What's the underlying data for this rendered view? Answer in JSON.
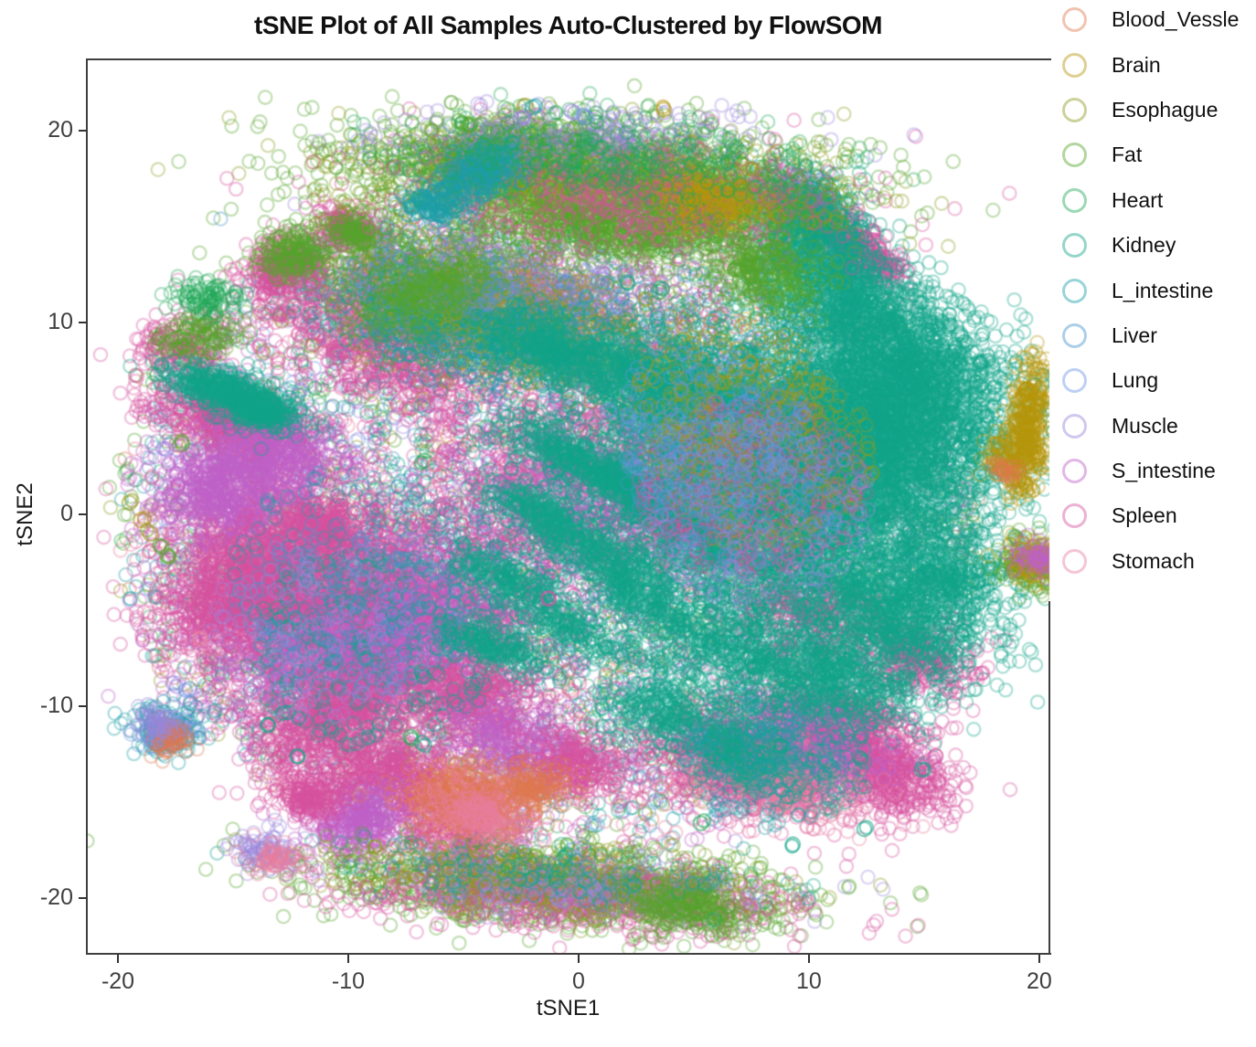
{
  "chart_data": {
    "type": "scatter",
    "title": "tSNE Plot of All Samples Auto-Clustered by FlowSOM",
    "xlabel": "tSNE1",
    "ylabel": "tSNE2",
    "xlim": [
      -21.35,
      20.44
    ],
    "ylim": [
      -22.9,
      23.71
    ],
    "x_ticks": [
      -20,
      -10,
      0,
      10,
      20
    ],
    "y_ticks": [
      -20,
      -10,
      0,
      10,
      20
    ],
    "grid": false,
    "legend_position": "right",
    "point_style": {
      "shape": "open-circle",
      "radius": 7.2,
      "stroke": 2.3,
      "alpha": 0.34
    },
    "series": [
      {
        "name": "Blood_Vessle",
        "color": "#E0794F"
      },
      {
        "name": "Brain",
        "color": "#B6950D"
      },
      {
        "name": "Esophague",
        "color": "#909C21"
      },
      {
        "name": "Fat",
        "color": "#55A52B"
      },
      {
        "name": "Heart",
        "color": "#21A857"
      },
      {
        "name": "Kidney",
        "color": "#13A489"
      },
      {
        "name": "L_intestine",
        "color": "#1C9FA8"
      },
      {
        "name": "Liver",
        "color": "#4895CB"
      },
      {
        "name": "Lung",
        "color": "#6D96E6"
      },
      {
        "name": "Muscle",
        "color": "#9B86DC"
      },
      {
        "name": "S_intestine",
        "color": "#BF60C8"
      },
      {
        "name": "Spleen",
        "color": "#D6529F"
      },
      {
        "name": "Stomach",
        "color": "#E87E9D"
      }
    ],
    "clusters": [
      [
        "Blood_Vessle",
        -1.5,
        -0.5,
        19,
        0,
        0,
        150,
        "d"
      ],
      [
        "Brain",
        -1,
        4,
        16,
        0,
        0,
        90,
        "d"
      ],
      [
        "Esophague",
        -1.5,
        0,
        19,
        0,
        0,
        520,
        "d"
      ],
      [
        "Fat",
        -1.5,
        1,
        19,
        0,
        0,
        600,
        "d"
      ],
      [
        "Heart",
        -1.5,
        0.5,
        18.5,
        0,
        0,
        480,
        "d"
      ],
      [
        "L_intestine",
        -1.5,
        -0.5,
        18.5,
        0,
        0,
        600,
        "d"
      ],
      [
        "Liver",
        -1.5,
        0,
        18,
        0,
        0,
        450,
        "d"
      ],
      [
        "Lung",
        -1.5,
        0,
        18,
        0,
        0,
        400,
        "d"
      ],
      [
        "Muscle",
        -1.5,
        -0.5,
        18.5,
        0,
        0,
        470,
        "d"
      ],
      [
        "S_intestine",
        -1.5,
        -1,
        18.5,
        0,
        0,
        520,
        "d"
      ],
      [
        "Spleen",
        -1.5,
        -1,
        18.5,
        0,
        0,
        430,
        "d"
      ],
      [
        "Stomach",
        -1.5,
        -0.5,
        18.5,
        0,
        0,
        470,
        "d"
      ],
      [
        "Kidney",
        -1.5,
        0,
        18,
        0,
        0,
        350,
        "d"
      ],
      [
        "Spleen",
        -0.3,
        2,
        4,
        3,
        0,
        1000
      ],
      [
        "S_intestine",
        1,
        0.5,
        4,
        3,
        0,
        650
      ],
      [
        "Spleen",
        -4,
        11,
        4.2,
        1.5,
        -12,
        850
      ],
      [
        "Spleen",
        -8.7,
        8.8,
        2.6,
        1.4,
        -25,
        620
      ],
      [
        "Fat",
        -5.5,
        12.3,
        3.5,
        1.2,
        -15,
        520
      ],
      [
        "Esophague",
        -3,
        10,
        4,
        1.5,
        -10,
        430
      ],
      [
        "Heart",
        -7,
        10.5,
        2.5,
        1.2,
        -20,
        300
      ],
      [
        "L_intestine",
        -5,
        9,
        3,
        1.3,
        -15,
        330
      ],
      [
        "Muscle",
        -2,
        12,
        4,
        1.5,
        -10,
        240
      ],
      [
        "Brain",
        -1,
        9.5,
        3.5,
        1.5,
        -15,
        190
      ],
      [
        "Liver",
        -4,
        11.5,
        4,
        1.6,
        -12,
        240
      ],
      [
        "Spleen",
        -9,
        -5.8,
        3.4,
        2.4,
        12,
        2100
      ],
      [
        "S_intestine",
        -9.2,
        -6.2,
        3.4,
        2.4,
        12,
        1400
      ],
      [
        "Spleen",
        -12.6,
        -1.6,
        2.4,
        1.9,
        -15,
        1050
      ],
      [
        "S_intestine",
        -15.4,
        1.4,
        1.5,
        1.3,
        0,
        580
      ],
      [
        "Spleen",
        -14.6,
        -4.2,
        1.9,
        1.4,
        22,
        720
      ],
      [
        "Spleen",
        -15,
        4.9,
        1.8,
        0.8,
        -20,
        540
      ],
      [
        "S_intestine",
        -13.2,
        3.2,
        1.5,
        1,
        -10,
        380
      ],
      [
        "Spleen",
        -10.6,
        -10.6,
        1.9,
        1.2,
        32,
        620
      ],
      [
        "Spleen",
        -8,
        -13.6,
        1.5,
        1,
        -12,
        480
      ],
      [
        "S_intestine",
        -9.6,
        -16,
        1.2,
        0.8,
        22,
        340
      ],
      [
        "Spleen",
        -11.6,
        -14.6,
        0.8,
        0.6,
        0,
        210
      ],
      [
        "Spleen",
        -4.6,
        -9.6,
        1.5,
        1.1,
        0,
        380
      ],
      [
        "S_intestine",
        -2.6,
        -12,
        1.5,
        1,
        -18,
        340
      ],
      [
        "Spleen",
        -5,
        -16.4,
        1.3,
        1,
        0,
        290
      ],
      [
        "Spleen",
        0,
        -13,
        1.3,
        0.9,
        -15,
        250
      ],
      [
        "Spleen",
        -11,
        -0.6,
        0.7,
        0.6,
        0,
        160
      ],
      [
        "Spleen",
        -12.8,
        12.7,
        0.9,
        0.7,
        0,
        250
      ],
      [
        "Fat",
        -12.3,
        13.5,
        0.8,
        0.6,
        0,
        170
      ],
      [
        "Spleen",
        -10.2,
        15.1,
        0.6,
        0.5,
        0,
        120
      ],
      [
        "Fat",
        -9.8,
        14.8,
        0.6,
        0.5,
        0,
        100
      ],
      [
        "Spleen",
        -17.2,
        8.6,
        1.1,
        0.8,
        0,
        170
      ],
      [
        "Fat",
        -16.6,
        9.3,
        0.9,
        0.6,
        0,
        110
      ],
      [
        "Heart",
        -16.2,
        11.3,
        0.7,
        0.5,
        0,
        90
      ],
      [
        "Spleen",
        11,
        14.9,
        1.5,
        0.55,
        -35,
        250
      ],
      [
        "Spleen",
        12.6,
        13.3,
        1.1,
        0.5,
        -35,
        160
      ],
      [
        "S_intestine",
        9.8,
        16.6,
        1,
        0.5,
        -30,
        120
      ],
      [
        "Spleen",
        7.6,
        -13,
        2.6,
        1.3,
        -12,
        800
      ],
      [
        "Spleen",
        11.4,
        -11.2,
        1.9,
        1.1,
        -22,
        480
      ],
      [
        "Spleen",
        13.6,
        -13.9,
        1.5,
        0.9,
        -25,
        330
      ],
      [
        "S_intestine",
        9.5,
        -12,
        2.2,
        1.2,
        -15,
        380
      ],
      [
        "Spleen",
        10,
        -5,
        2,
        1.4,
        -25,
        380
      ],
      [
        "Spleen",
        14.8,
        -7.5,
        1.3,
        0.9,
        -25,
        250
      ],
      [
        "Stomach",
        8.5,
        -14,
        2,
        1,
        -12,
        280
      ],
      [
        "L_intestine",
        -9,
        -3,
        6,
        0,
        0,
        240,
        "d"
      ],
      [
        "Kidney",
        -9,
        -7,
        5.5,
        0,
        0,
        280,
        "d"
      ],
      [
        "Liver",
        -10,
        -5,
        5,
        0,
        0,
        150,
        "d"
      ],
      [
        "Muscle",
        -11,
        -6,
        5,
        0,
        0,
        140,
        "d"
      ],
      [
        "Kidney",
        8.3,
        1.8,
        4.3,
        4,
        0,
        4600
      ],
      [
        "Kidney",
        12.8,
        3.8,
        3,
        2.6,
        10,
        2300
      ],
      [
        "Kidney",
        14.6,
        7.2,
        1.8,
        1.6,
        20,
        680
      ],
      [
        "Kidney",
        12.2,
        10.3,
        2,
        1.4,
        -25,
        680
      ],
      [
        "Kidney",
        10.6,
        13,
        1.6,
        1.1,
        -28,
        480
      ],
      [
        "Kidney",
        9.7,
        15.7,
        1.3,
        1,
        -30,
        380
      ],
      [
        "Kidney",
        5,
        6.5,
        2.6,
        1.4,
        -22,
        680
      ],
      [
        "Kidney",
        1,
        7.8,
        2.2,
        1,
        -25,
        430
      ],
      [
        "Kidney",
        -1.8,
        8.8,
        1.4,
        0.8,
        -25,
        250
      ],
      [
        "Kidney",
        13.6,
        -5.3,
        2.4,
        1.5,
        -33,
        780
      ],
      [
        "Kidney",
        16.2,
        -3.2,
        1.4,
        1.1,
        -33,
        340
      ],
      [
        "Kidney",
        11.3,
        -8.6,
        1.8,
        1.1,
        -28,
        430
      ],
      [
        "Kidney",
        7.2,
        -7.5,
        2.2,
        1.3,
        -25,
        480
      ],
      [
        "Kidney",
        3.8,
        -10.4,
        1.6,
        0.9,
        -15,
        290
      ],
      [
        "Kidney",
        7,
        -12.4,
        1.3,
        0.8,
        -22,
        250
      ],
      [
        "Kidney",
        -15.2,
        6.4,
        1.5,
        0.5,
        -18,
        480
      ],
      [
        "Kidney",
        -13.9,
        5.3,
        0.8,
        0.4,
        -18,
        160
      ],
      [
        "Kidney",
        2.2,
        1.5,
        2,
        0.6,
        -30,
        270
      ],
      [
        "Kidney",
        -0.5,
        3,
        1.8,
        0.5,
        -28,
        250
      ],
      [
        "Kidney",
        -1.5,
        0,
        1.6,
        0.5,
        -32,
        230
      ],
      [
        "Kidney",
        0.8,
        -2,
        1.8,
        0.5,
        -30,
        230
      ],
      [
        "Kidney",
        -2.8,
        -3.5,
        1.6,
        0.5,
        -28,
        210
      ],
      [
        "Kidney",
        2.8,
        -4.5,
        1.8,
        0.5,
        -32,
        230
      ],
      [
        "Kidney",
        -0.5,
        -6,
        1.8,
        0.5,
        -28,
        210
      ],
      [
        "Kidney",
        -3.5,
        -7,
        1.4,
        0.5,
        -25,
        190
      ],
      [
        "Kidney",
        4.8,
        -0.5,
        1.6,
        0.5,
        -30,
        210
      ],
      [
        "Kidney",
        9.5,
        -12.5,
        3.5,
        0,
        0,
        170,
        "d"
      ],
      [
        "L_intestine",
        8,
        -13,
        3.5,
        0,
        0,
        120,
        "d"
      ],
      [
        "Spleen",
        7.5,
        1.5,
        5,
        0,
        0,
        400,
        "d"
      ],
      [
        "Esophague",
        8,
        3,
        5,
        0,
        0,
        250,
        "d"
      ],
      [
        "Brain",
        6.5,
        6.5,
        4,
        0,
        0,
        130,
        "d"
      ],
      [
        "Muscle",
        8,
        0,
        5,
        0,
        0,
        190,
        "d"
      ],
      [
        "Liver",
        7,
        2,
        5,
        0,
        0,
        190,
        "d"
      ],
      [
        "Lung",
        5.5,
        4.5,
        4.5,
        0,
        0,
        160,
        "d"
      ],
      [
        "Fat",
        0.5,
        17.6,
        5.3,
        1.35,
        -4,
        1500
      ],
      [
        "Esophague",
        0.5,
        17.4,
        5.3,
        1.4,
        -4,
        650
      ],
      [
        "Fat",
        -3.2,
        19,
        2.2,
        0.8,
        8,
        420
      ],
      [
        "Fat",
        5.2,
        15.9,
        2,
        1,
        -18,
        380
      ],
      [
        "Fat",
        0.8,
        14.9,
        2.6,
        0.8,
        -10,
        470
      ],
      [
        "Spleen",
        1.5,
        16.8,
        5,
        1.5,
        -5,
        470
      ],
      [
        "Muscle",
        0,
        19.6,
        4.5,
        0.8,
        0,
        230
      ],
      [
        "L_intestine",
        -4.3,
        17.8,
        1,
        0.7,
        25,
        260
      ],
      [
        "L_intestine",
        -6.3,
        16.1,
        0.7,
        0.5,
        0,
        130
      ],
      [
        "Brain",
        5.8,
        16.4,
        1.2,
        0.7,
        -15,
        170
      ],
      [
        "Heart",
        2,
        18.5,
        4.5,
        1.2,
        -5,
        330
      ],
      [
        "Fat",
        -6.5,
        11.5,
        1.8,
        0.8,
        30,
        240
      ],
      [
        "Fat",
        8,
        12.5,
        1.5,
        0.9,
        -20,
        240
      ],
      [
        "Fat",
        -0.8,
        -19.4,
        5.2,
        1,
        -4,
        1000
      ],
      [
        "Spleen",
        -0.4,
        -19.8,
        5,
        0.9,
        -4,
        650
      ],
      [
        "Esophague",
        -1.2,
        -19,
        5,
        0.9,
        -4,
        380
      ],
      [
        "Muscle",
        0.5,
        -19.5,
        4.5,
        0.9,
        -4,
        210
      ],
      [
        "Fat",
        4.6,
        -20.4,
        1.4,
        0.7,
        -15,
        230
      ],
      [
        "Kidney",
        -2,
        -18.6,
        4.5,
        0.8,
        -4,
        150
      ],
      [
        "Blood_Vessle",
        -5,
        -14.9,
        1.3,
        0.9,
        -10,
        400
      ],
      [
        "Stomach",
        -4.2,
        -15.4,
        1.2,
        0.8,
        -10,
        230
      ],
      [
        "Blood_Vessle",
        -2,
        -14.2,
        0.8,
        0.6,
        0,
        140
      ],
      [
        "Brain",
        19.55,
        4.8,
        0.42,
        1.5,
        -5,
        290
      ],
      [
        "Brain",
        18.95,
        2.9,
        0.7,
        0.55,
        0,
        110
      ],
      [
        "Brain",
        19.3,
        1.5,
        0.3,
        0.3,
        0,
        30
      ],
      [
        "Blood_Vessle",
        18.35,
        2.25,
        0.3,
        0.25,
        0,
        25
      ],
      [
        "Fat",
        19.85,
        -2.55,
        0.8,
        0.7,
        0,
        190
      ],
      [
        "Brain",
        19.85,
        -2.55,
        0.7,
        0.6,
        0,
        100
      ],
      [
        "S_intestine",
        19.9,
        -2.3,
        0.5,
        0.4,
        0,
        60
      ],
      [
        "L_intestine",
        -17.9,
        -11.2,
        0.8,
        0.6,
        0,
        150
      ],
      [
        "Lung",
        -17.9,
        -11.5,
        0.6,
        0.5,
        0,
        80
      ],
      [
        "Blood_Vessle",
        -17.7,
        -11.8,
        0.5,
        0.4,
        0,
        60
      ],
      [
        "Muscle",
        -18.2,
        -10.9,
        0.5,
        0.4,
        0,
        50
      ],
      [
        "Muscle",
        -13.6,
        -17.6,
        0.7,
        0.5,
        0,
        90
      ],
      [
        "Stomach",
        -13.2,
        -17.9,
        0.6,
        0.4,
        0,
        60
      ]
    ],
    "singles": [
      [
        "Esophague",
        -19.5,
        0.6
      ],
      [
        "Brain",
        -19,
        -0.3
      ],
      [
        "Esophague",
        -18.6,
        -1
      ],
      [
        "Fat",
        -18.1,
        -1.7
      ],
      [
        "Fat",
        -17.85,
        -2.15
      ],
      [
        "Muscle",
        -17.9,
        3.4
      ],
      [
        "Fat",
        -17.2,
        3.7
      ],
      [
        "Heart",
        -15,
        11.3
      ],
      [
        "Esophague",
        -2.3,
        21.3
      ],
      [
        "L_intestine",
        -2,
        21.2
      ],
      [
        "Fat",
        -5.2,
        20.5
      ],
      [
        "Fat",
        -4.7,
        20.3
      ],
      [
        "Muscle",
        -0.3,
        21
      ],
      [
        "Lung",
        0.3,
        20.7
      ],
      [
        "Brain",
        3.7,
        21.1
      ],
      [
        "Muscle",
        -2.5,
        20.6
      ],
      [
        "Kidney",
        9.3,
        -17.2
      ],
      [
        "Kidney",
        12.4,
        -16.4
      ],
      [
        "Heart",
        5.3,
        -16.1
      ],
      [
        "Kidney",
        14.9,
        -13.3
      ],
      [
        "Spleen",
        14.2,
        -12.9
      ],
      [
        "Spleen",
        15.5,
        -12.6
      ],
      [
        "Kidney",
        -12.2,
        -12.6
      ],
      [
        "Kidney",
        -13.5,
        -11
      ],
      [
        "Muscle",
        -17.6,
        -8.8
      ],
      [
        "Lung",
        -16.9,
        -9.1
      ],
      [
        "Stomach",
        -16.4,
        -6.5
      ],
      [
        "Heart",
        -6.7,
        2.8
      ],
      [
        "Stomach",
        -6.2,
        2.6
      ],
      [
        "Kidney",
        -3.7,
        -1.8
      ],
      [
        "Spleen",
        -1.3,
        -4.4
      ],
      [
        "Heart",
        -7.3,
        -11.6
      ],
      [
        "Kidney",
        -6.8,
        -11.9
      ],
      [
        "Kidney",
        2.1,
        12.1
      ],
      [
        "Heart",
        3.5,
        11.6
      ]
    ]
  }
}
